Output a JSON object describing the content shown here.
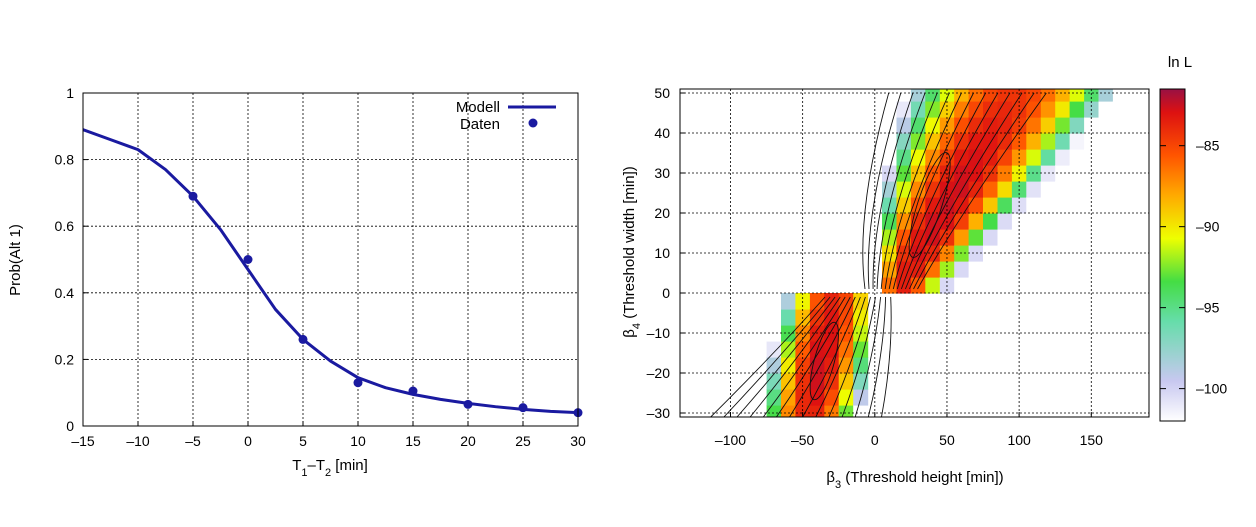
{
  "colors": {
    "model_line": "#1a1aa0",
    "data_points": "#1a1aa0",
    "colorscale": [
      "#ffffff",
      "#c8c8f0",
      "#66ddaa",
      "#44dd44",
      "#eeff00",
      "#ffaa00",
      "#ff5500",
      "#dd1111",
      "#991144"
    ]
  },
  "chart_data": [
    {
      "type": "line",
      "xlabel_parts": [
        "T",
        "1",
        "–T",
        "2",
        " [min]"
      ],
      "ylabel": "Prob(Alt 1)",
      "xlim": [
        -15,
        30
      ],
      "ylim": [
        0,
        1
      ],
      "x_ticks": [
        "–15",
        "–10",
        "–5",
        "0",
        "5",
        "10",
        "15",
        "20",
        "25",
        "30"
      ],
      "y_ticks": [
        "0",
        "0.2",
        "0.4",
        "0.6",
        "0.8",
        "1"
      ],
      "grid": true,
      "legend_position": "top-right",
      "series": [
        {
          "name": "Modell",
          "kind": "line",
          "x": [
            -15,
            -12.5,
            -10,
            -7.5,
            -5,
            -2.5,
            0,
            2.5,
            5,
            7.5,
            10,
            12.5,
            15,
            17.5,
            20,
            22.5,
            25,
            27.5,
            30
          ],
          "y": [
            0.89,
            0.86,
            0.83,
            0.77,
            0.69,
            0.59,
            0.47,
            0.35,
            0.26,
            0.195,
            0.145,
            0.115,
            0.095,
            0.08,
            0.068,
            0.058,
            0.05,
            0.044,
            0.04
          ]
        },
        {
          "name": "Daten",
          "kind": "points",
          "x": [
            -5,
            0,
            5,
            10,
            15,
            20,
            25,
            30
          ],
          "y": [
            0.69,
            0.5,
            0.26,
            0.13,
            0.105,
            0.065,
            0.055,
            0.04
          ]
        }
      ]
    },
    {
      "type": "heatmap",
      "xlabel_parts": [
        "β",
        "3",
        " (Threshold height [min])"
      ],
      "ylabel_parts": [
        "β",
        "4",
        " (Threshold width [min])"
      ],
      "xlim": [
        -135,
        190
      ],
      "ylim": [
        -31,
        51
      ],
      "x_ticks": [
        "–100",
        "–50",
        "0",
        "50",
        "100",
        "150"
      ],
      "y_ticks": [
        "–30",
        "–20",
        "–10",
        "0",
        "10",
        "20",
        "30",
        "40",
        "50"
      ],
      "grid": true,
      "colorbar": {
        "title": "ln L",
        "range": [
          -102,
          -81.5
        ],
        "ticks": [
          "–85",
          "–90",
          "–95",
          "–100"
        ]
      }
    }
  ]
}
